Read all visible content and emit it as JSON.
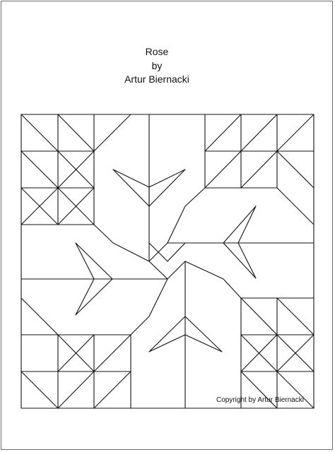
{
  "title": {
    "line1": "Rose",
    "line2": "by",
    "line3": "Artur Biernacki"
  },
  "copyright": "Copyright by Artur Biernacki"
}
